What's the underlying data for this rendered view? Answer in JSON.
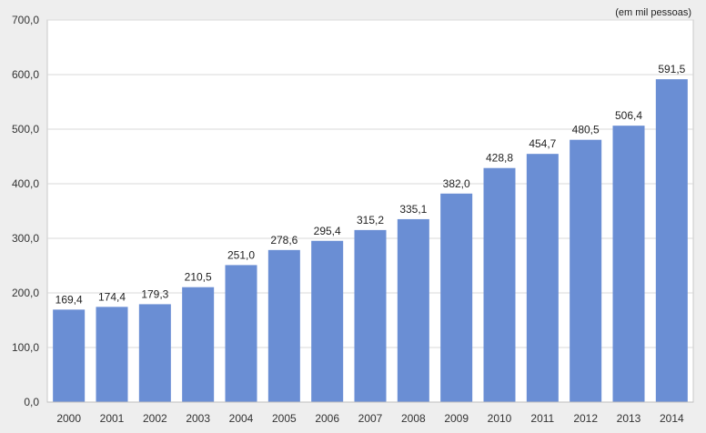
{
  "chart_data": {
    "type": "bar",
    "unit_note": "(em mil pessoas)",
    "categories": [
      "2000",
      "2001",
      "2002",
      "2003",
      "2004",
      "2005",
      "2006",
      "2007",
      "2008",
      "2009",
      "2010",
      "2011",
      "2012",
      "2013",
      "2014"
    ],
    "values": [
      169.4,
      174.4,
      179.3,
      210.5,
      251.0,
      278.6,
      295.4,
      315.2,
      335.1,
      382.0,
      428.8,
      454.7,
      480.5,
      506.4,
      591.5
    ],
    "value_labels": [
      "169,4",
      "174,4",
      "179,3",
      "210,5",
      "251,0",
      "278,6",
      "295,4",
      "315,2",
      "335,1",
      "382,0",
      "428,8",
      "454,7",
      "480,5",
      "506,4",
      "591,5"
    ],
    "y_ticks": [
      0,
      100,
      200,
      300,
      400,
      500,
      600,
      700
    ],
    "y_tick_labels": [
      "0,0",
      "100,0",
      "200,0",
      "300,0",
      "400,0",
      "500,0",
      "600,0",
      "700,0"
    ],
    "ylim": [
      0,
      700
    ],
    "grid": true,
    "legend": "none",
    "colors": {
      "bar": "#6a8ed4",
      "grid": "#d9d9d9",
      "plot_background": "#ffffff",
      "page_background": "#eeeeee"
    }
  }
}
